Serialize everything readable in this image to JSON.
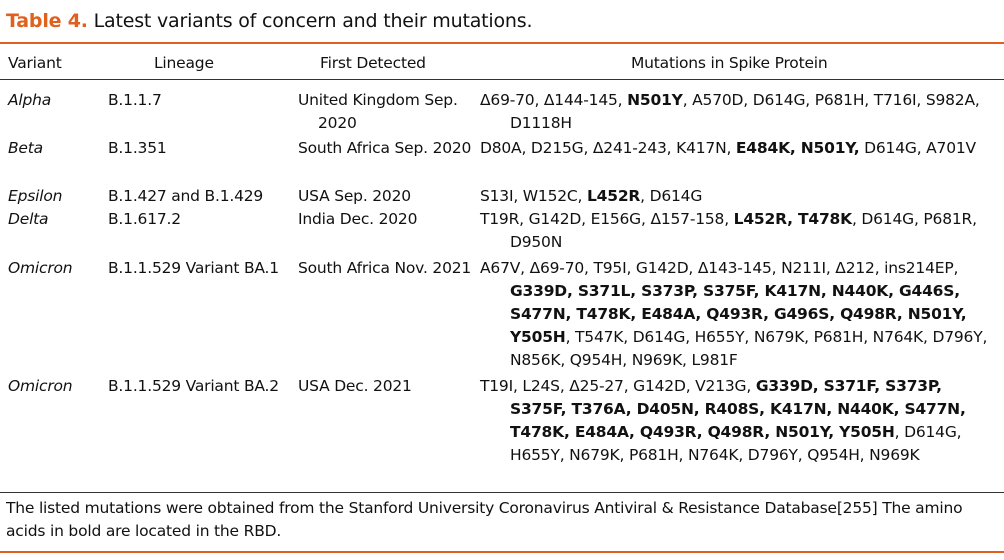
{
  "caption": {
    "label": "Table 4.",
    "text": "Latest variants of concern and their mutations."
  },
  "headers": [
    "Variant",
    "Lineage",
    "First Detected",
    "Mutations in Spike Protein"
  ],
  "rows": [
    {
      "variant": "Alpha",
      "lineage": "B.1.1.7",
      "first": "United Kingdom Sep. 2020",
      "mutations": [
        {
          "t": "Δ69-70, Δ144-145, ",
          "b": false
        },
        {
          "t": "N501Y",
          "b": true
        },
        {
          "t": ", A570D, D614G, P681H, T716I, S982A, D1118H",
          "b": false
        }
      ]
    },
    {
      "variant": "Beta",
      "lineage": "B.1.351",
      "first": "South Africa Sep. 2020",
      "mutations": [
        {
          "t": "D80A, D215G, Δ241-243, K417N, ",
          "b": false
        },
        {
          "t": "E484K, N501Y,",
          "b": true
        },
        {
          "t": " D614G, A701V",
          "b": false
        }
      ]
    },
    {
      "variant": "Epsilon",
      "lineage": "B.1.427 and B.1.429",
      "first": "USA Sep. 2020",
      "mutations": [
        {
          "t": "S13I, W152C, ",
          "b": false
        },
        {
          "t": "L452R",
          "b": true
        },
        {
          "t": ", D614G",
          "b": false
        }
      ]
    },
    {
      "variant": "Delta",
      "lineage": "B.1.617.2",
      "first": "India Dec. 2020",
      "mutations": [
        {
          "t": "T19R, G142D, E156G, Δ157-158, ",
          "b": false
        },
        {
          "t": "L452R, T478K",
          "b": true
        },
        {
          "t": ", D614G, P681R, D950N",
          "b": false
        }
      ]
    },
    {
      "variant": "Omicron",
      "lineage": "B.1.1.529 Variant BA.1",
      "first": "South Africa Nov. 2021",
      "mutations": [
        {
          "t": "A67V, Δ69-70, T95I, G142D, Δ143-145, N211I, Δ212, ins214EP, ",
          "b": false
        },
        {
          "t": "G339D, S371L, S373P, S375F, K417N, N440K, G446S, S477N, T478K, E484A, Q493R, G496S, Q498R, N501Y, Y505H",
          "b": true
        },
        {
          "t": ", T547K, D614G, H655Y, N679K, P681H, N764K, D796Y, N856K, Q954H, N969K, L981F",
          "b": false
        }
      ]
    },
    {
      "variant": "Omicron",
      "lineage": "B.1.1.529 Variant BA.2",
      "first": "USA Dec. 2021",
      "mutations": [
        {
          "t": "T19I, L24S, Δ25-27, G142D, V213G, ",
          "b": false
        },
        {
          "t": "G339D, S371F, S373P, S375F, T376A, D405N, R408S, K417N, N440K, S477N, T478K, E484A, Q493R, Q498R, N501Y, Y505H",
          "b": true
        },
        {
          "t": ", D614G, H655Y, N679K, P681H, N764K, D796Y, Q954H, N969K",
          "b": false
        }
      ]
    }
  ],
  "footnote": "The listed mutations were obtained from the Stanford University Coronavirus Antiviral & Resistance Database[255] The amino acids in bold are located in the RBD.",
  "colors": {
    "accent": "#e0601e",
    "text": "#111111"
  }
}
